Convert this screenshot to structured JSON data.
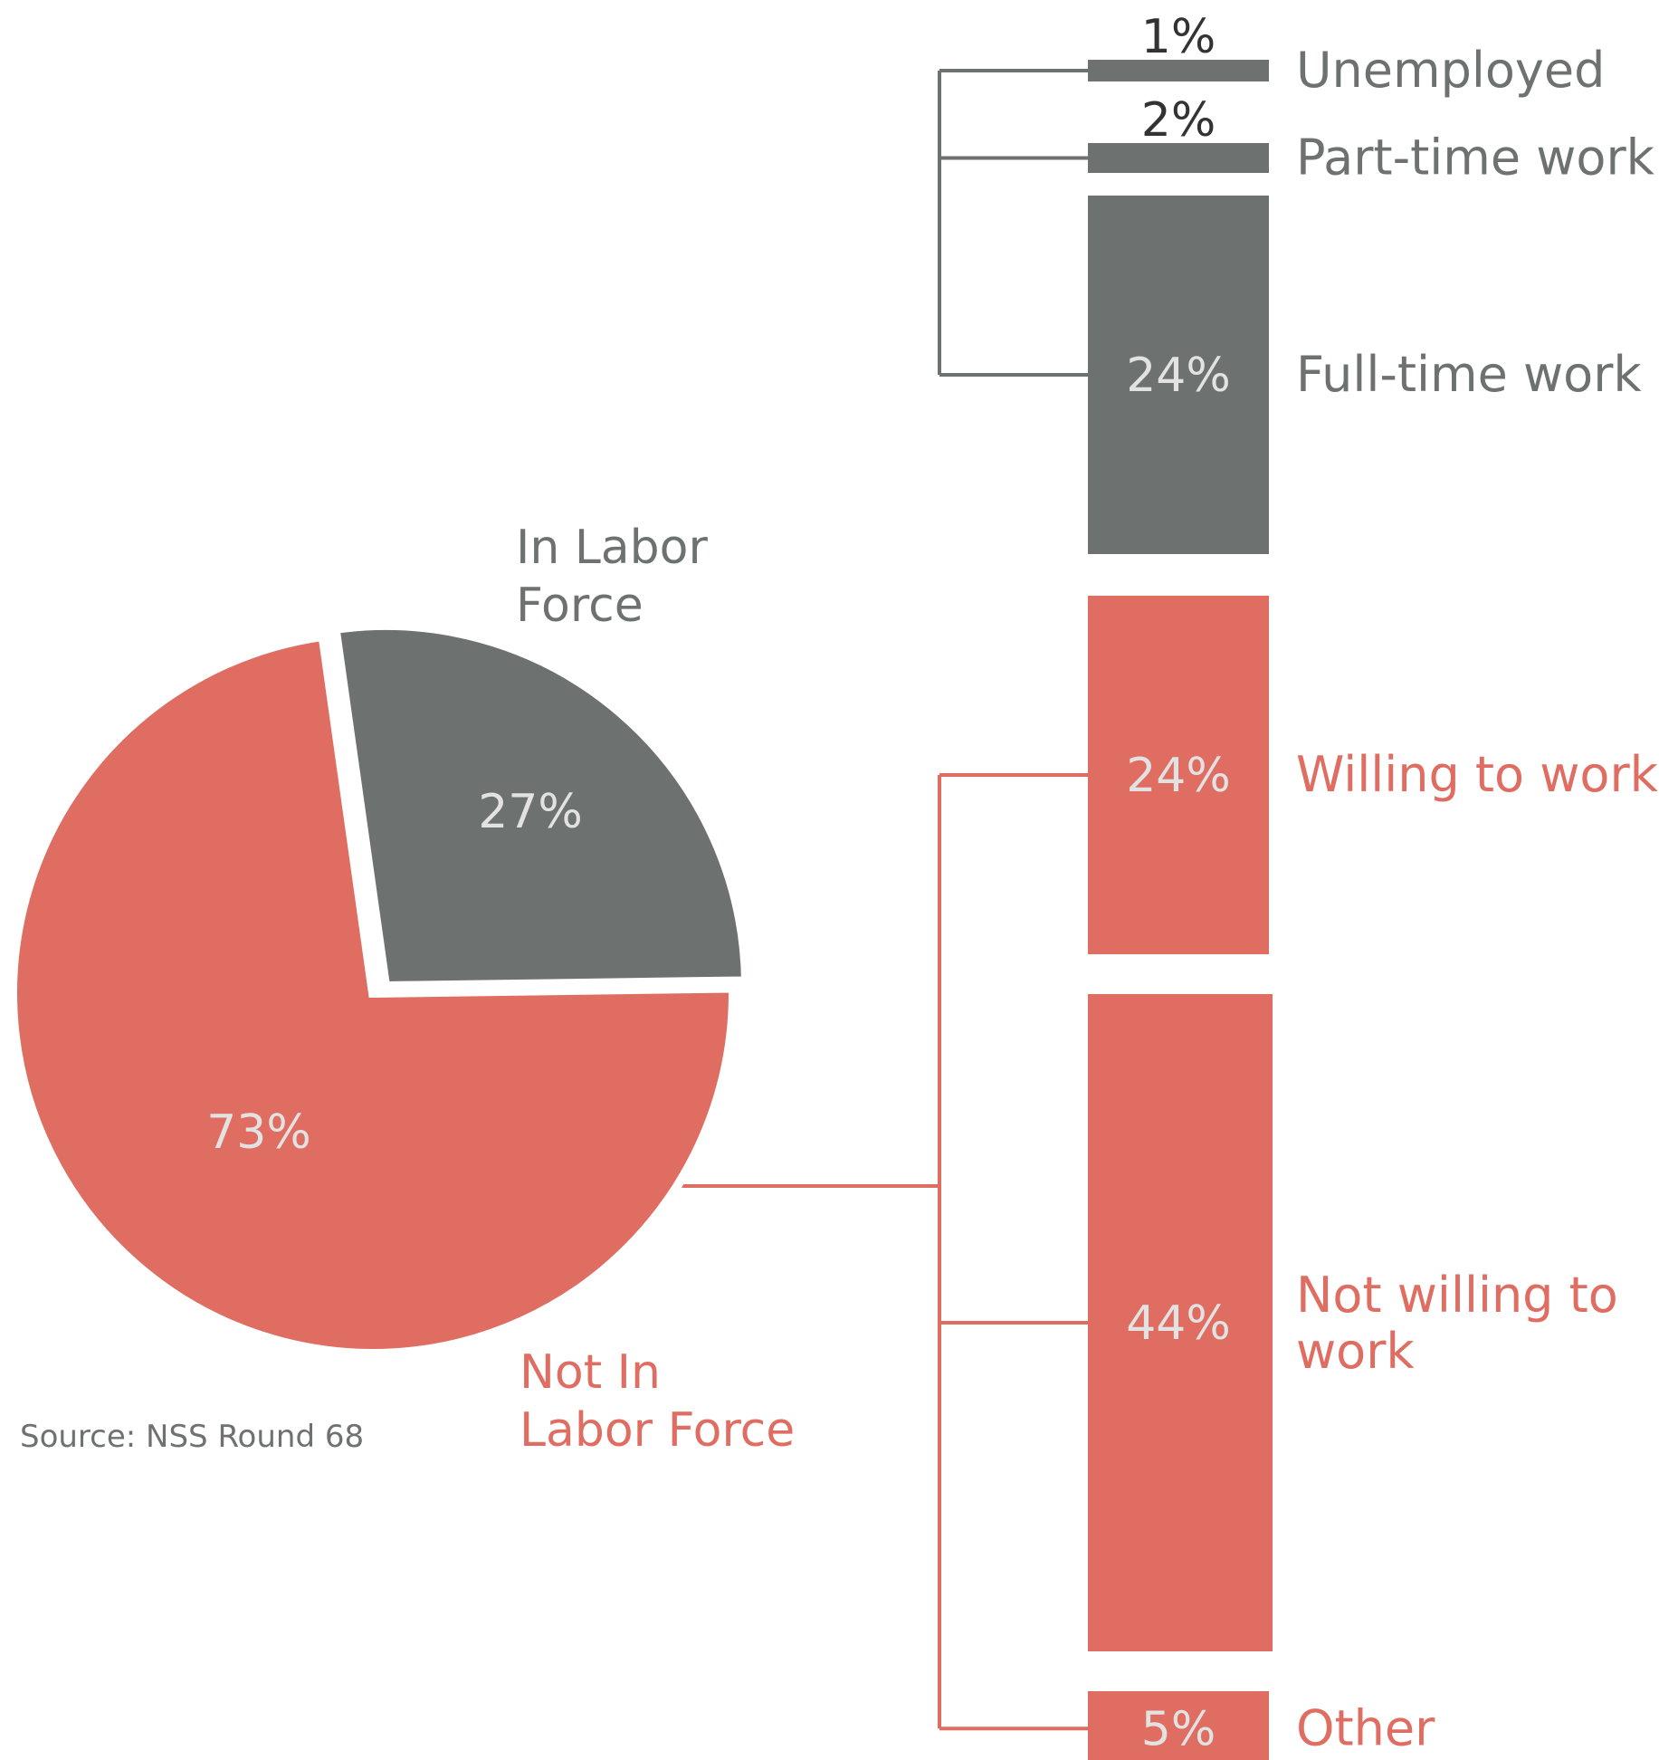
{
  "colors": {
    "gray": "#6d7271",
    "coral": "#e06d61",
    "value_text": "#e2e2e2",
    "dark_text": "#333333"
  },
  "source": "Source: NSS Round 68",
  "chart_data": [
    {
      "type": "pie",
      "slices": [
        {
          "label_lines": [
            "In Labor",
            "Force"
          ],
          "value": 27,
          "display": "27%",
          "color": "#6d7271",
          "exploded": true
        },
        {
          "label_lines": [
            "Not In",
            "Labor Force"
          ],
          "value": 73,
          "display": "73%",
          "color": "#e06d61",
          "exploded": false
        }
      ]
    },
    {
      "type": "bar",
      "orientation": "stacked-breakdown",
      "groups": [
        {
          "parent": "In Labor Force",
          "color": "#6d7271",
          "items": [
            {
              "label_lines": [
                "Unemployed"
              ],
              "value": 1,
              "display": "1%"
            },
            {
              "label_lines": [
                "Part-time work"
              ],
              "value": 2,
              "display": "2%"
            },
            {
              "label_lines": [
                "Full-time work"
              ],
              "value": 24,
              "display": "24%"
            }
          ]
        },
        {
          "parent": "Not In Labor Force",
          "color": "#e06d61",
          "items": [
            {
              "label_lines": [
                "Willing to work"
              ],
              "value": 24,
              "display": "24%"
            },
            {
              "label_lines": [
                "Not willing to",
                "work"
              ],
              "value": 44,
              "display": "44%"
            },
            {
              "label_lines": [
                "Other"
              ],
              "value": 5,
              "display": "5%"
            }
          ]
        }
      ]
    }
  ]
}
